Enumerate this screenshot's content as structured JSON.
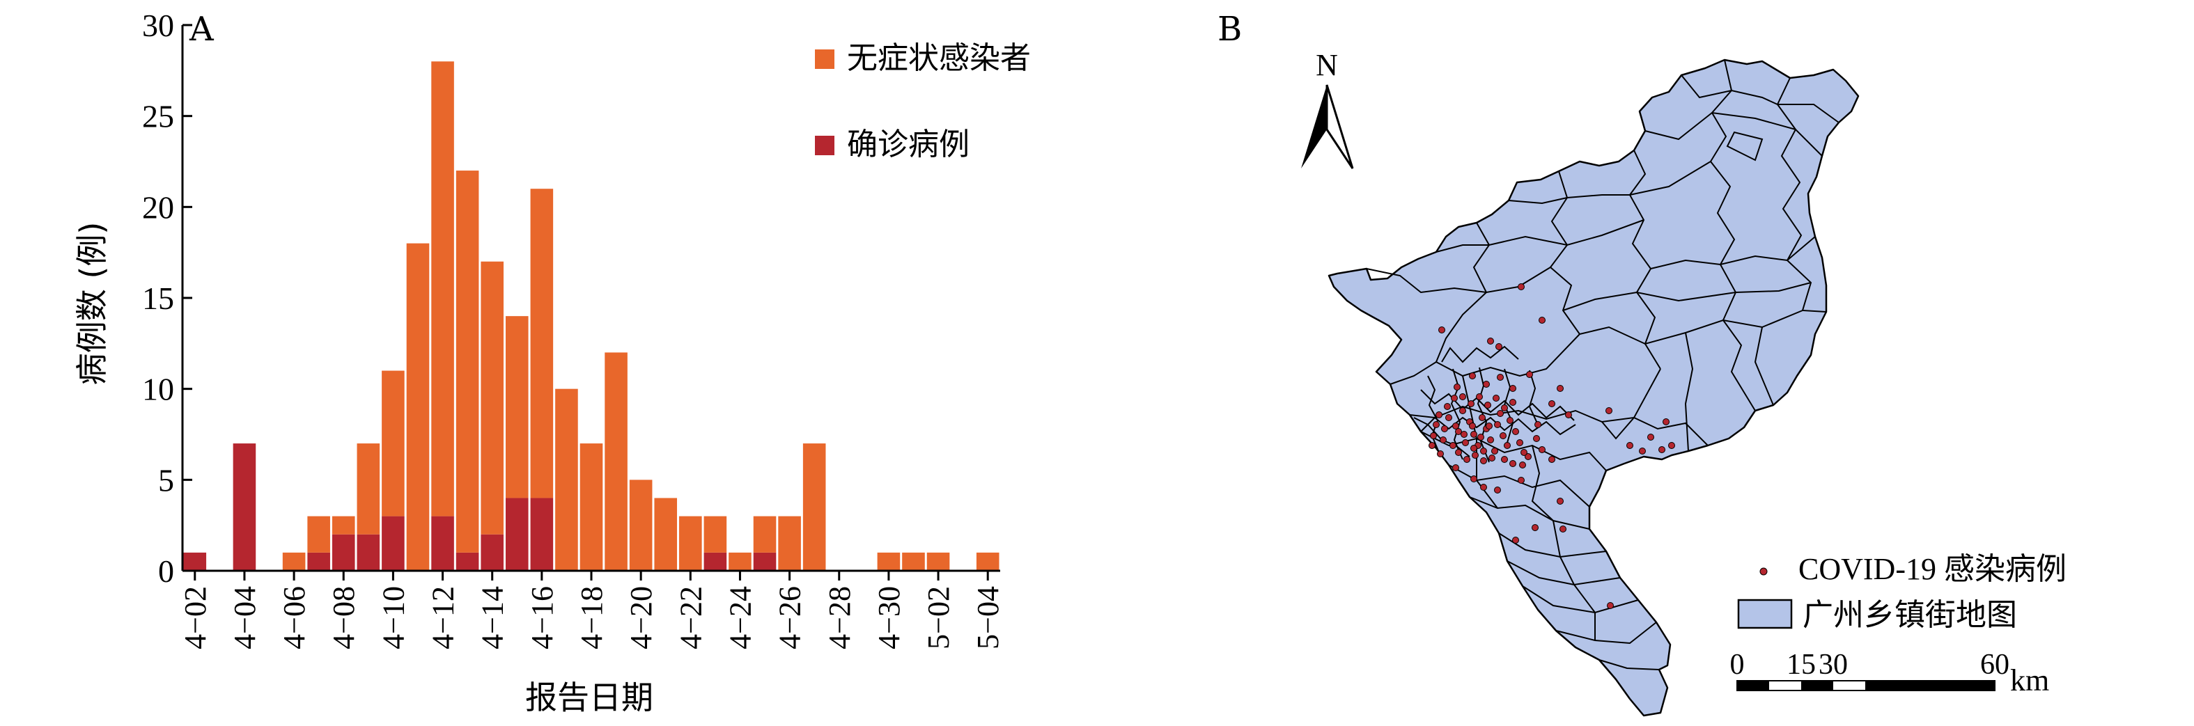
{
  "panel_a": {
    "label": "A",
    "chart_data": {
      "type": "bar",
      "stacked": true,
      "categories": [
        "4-02",
        "4-03",
        "4-04",
        "4-05",
        "4-06",
        "4-07",
        "4-08",
        "4-09",
        "4-10",
        "4-11",
        "4-12",
        "4-13",
        "4-14",
        "4-15",
        "4-16",
        "4-17",
        "4-18",
        "4-19",
        "4-20",
        "4-21",
        "4-22",
        "4-23",
        "4-24",
        "4-25",
        "4-26",
        "4-27",
        "4-28",
        "4-29",
        "4-30",
        "5-01",
        "5-02",
        "5-03",
        "5-04"
      ],
      "tick_labels": [
        "4−02",
        "4−04",
        "4−06",
        "4−08",
        "4−10",
        "4−12",
        "4−14",
        "4−16",
        "4−18",
        "4−20",
        "4−22",
        "4−24",
        "4−26",
        "4−28",
        "4−30",
        "5−02",
        "5−04"
      ],
      "series": [
        {
          "name": "确诊病例",
          "color": "#b5262f",
          "values": [
            1,
            0,
            7,
            0,
            0,
            1,
            2,
            2,
            3,
            0,
            3,
            1,
            2,
            4,
            4,
            0,
            0,
            0,
            0,
            0,
            0,
            1,
            0,
            1,
            0,
            0,
            0,
            0,
            0,
            0,
            0,
            0,
            0
          ]
        },
        {
          "name": "无症状感染者",
          "color": "#e8672b",
          "values": [
            0,
            0,
            0,
            0,
            1,
            2,
            1,
            5,
            8,
            18,
            25,
            21,
            15,
            10,
            17,
            10,
            7,
            12,
            5,
            4,
            3,
            2,
            1,
            2,
            3,
            7,
            0,
            0,
            1,
            1,
            1,
            0,
            1
          ]
        }
      ],
      "totals": [
        1,
        0,
        7,
        0,
        1,
        3,
        3,
        7,
        11,
        18,
        28,
        22,
        17,
        14,
        21,
        10,
        7,
        12,
        5,
        4,
        3,
        3,
        1,
        3,
        3,
        7,
        0,
        0,
        1,
        1,
        1,
        0,
        1
      ],
      "y_ticks": [
        "0",
        "5",
        "10",
        "15",
        "20",
        "25",
        "30"
      ],
      "ylim": [
        0,
        30
      ],
      "xlabel": "报告日期",
      "ylabel": "病例数 (例)",
      "legend_position": "top-right",
      "grid": false
    }
  },
  "panel_b": {
    "label": "B",
    "north": "N",
    "legend": {
      "points_label": "COVID-19 感染病例",
      "polygons_label": "广州乡镇街地图",
      "point_color": "#b5262f",
      "polygon_color": "#b4c4e8"
    },
    "scale_bar": {
      "ticks": [
        "0",
        "15",
        "30",
        "60"
      ],
      "unit": "km"
    }
  }
}
